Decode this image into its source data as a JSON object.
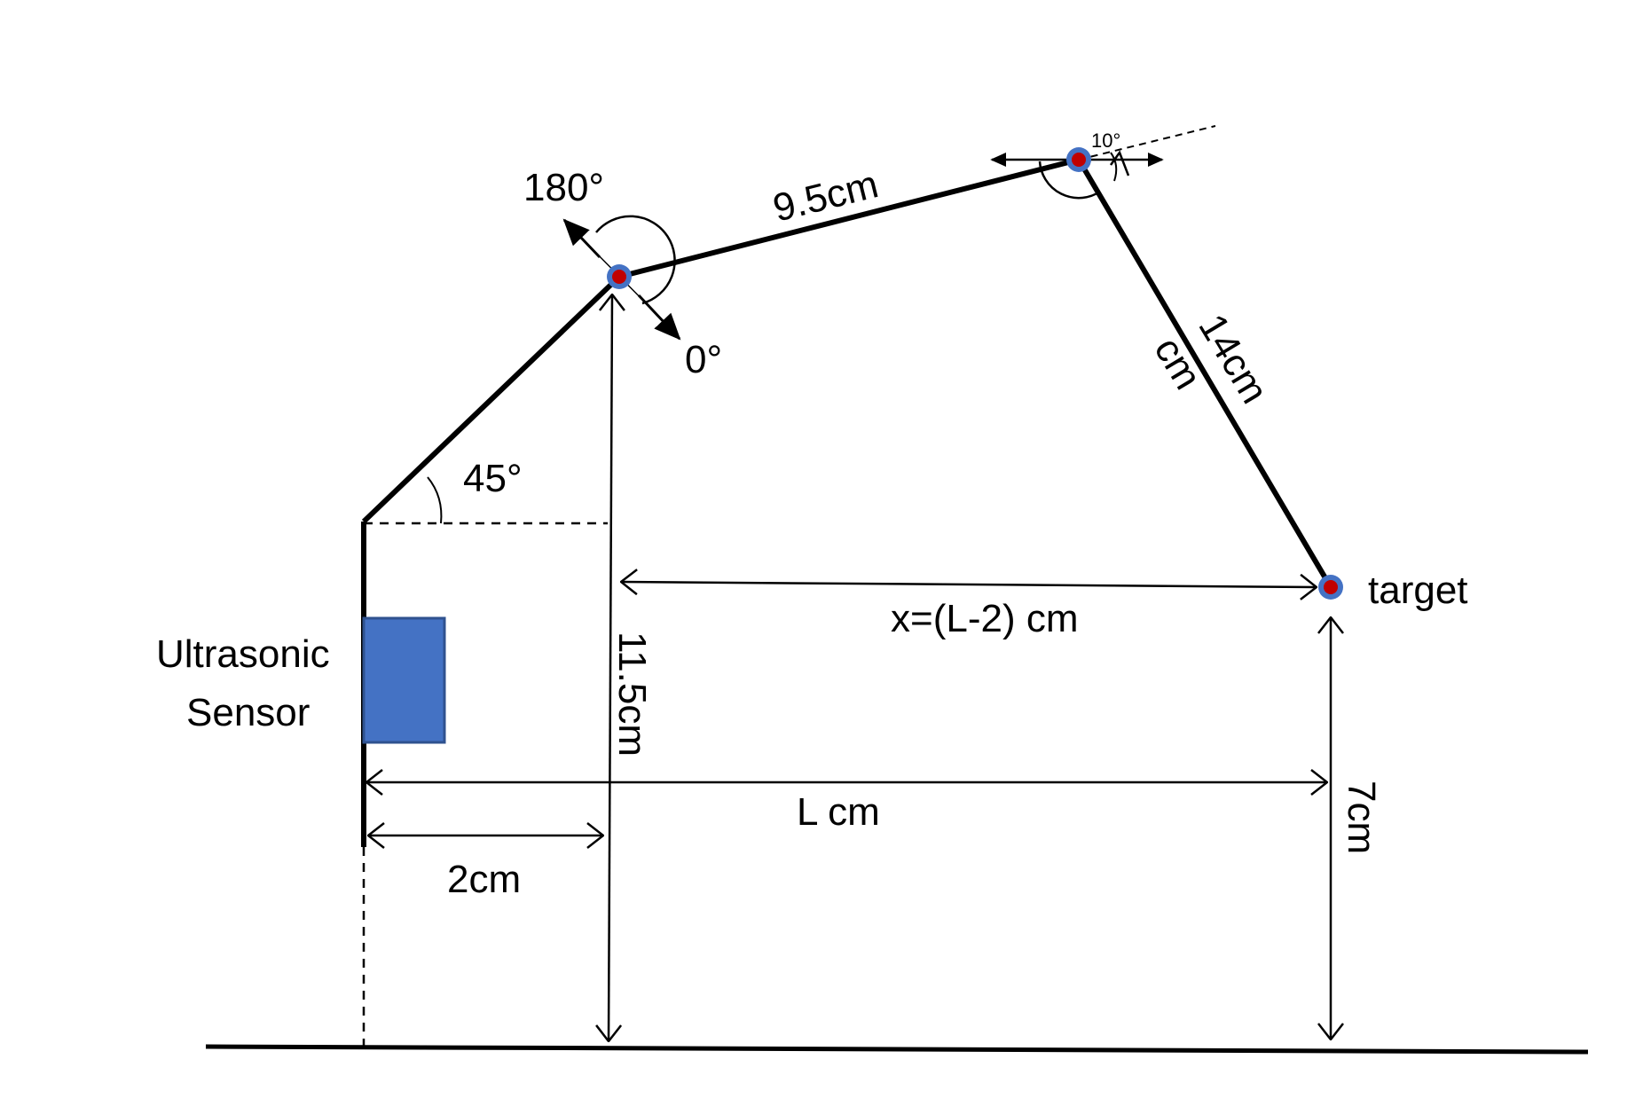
{
  "labels": {
    "angle_180": "180°",
    "angle_0": "0°",
    "angle_45": "45°",
    "angle_10": "10°",
    "arm_link_1": "9.5cm",
    "arm_link_2_a": "14cm",
    "arm_link_2_b": "cm",
    "height_joint": "11.5cm",
    "height_target": "7cm",
    "distance_x": "x=(L-2) cm",
    "distance_L": "L cm",
    "distance_2": "2cm",
    "target": "target",
    "sensor_line1": "Ultrasonic",
    "sensor_line2": "Sensor"
  },
  "colors": {
    "line": "#000000",
    "sensor_fill": "#4472c4",
    "sensor_stroke": "#2f528f",
    "joint_outer": "#4472c4",
    "joint_inner": "#c00000"
  }
}
